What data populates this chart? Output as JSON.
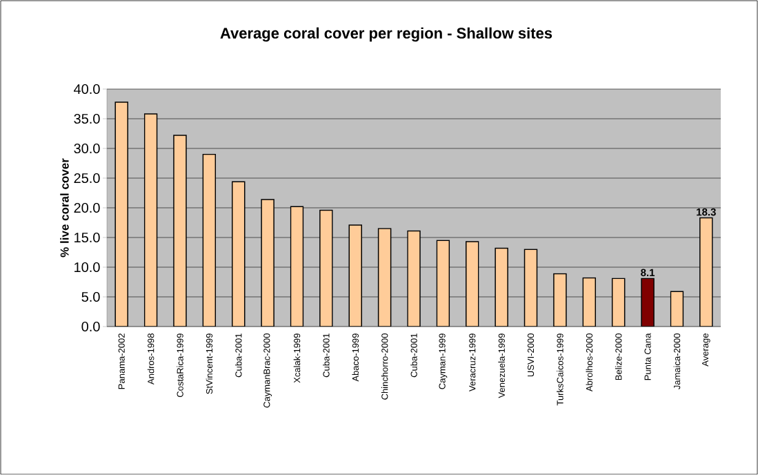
{
  "chart_data": {
    "type": "bar",
    "title": "Average coral cover per region - Shallow sites",
    "ylabel": "% live coral cover",
    "categories": [
      "Panama-2002",
      "Andros-1998",
      "CostaRica-1999",
      "StVincent-1999",
      "Cuba-2001",
      "CaymanBrac-2000",
      "Xcalak-1999",
      "Cuba-2001",
      "Abaco-1999",
      "Chinchorro-2000",
      "Cuba-2001",
      "Cayman-1999",
      "Veracruz-1999",
      "Venezuela-1999",
      "USVI-2000",
      "TurksCaicos-1999",
      "Abrolhos-2000",
      "Belize-2000",
      "Punta Cana",
      "Jamaica-2000",
      "Average"
    ],
    "values": [
      37.8,
      35.8,
      32.2,
      29.0,
      24.4,
      21.4,
      20.2,
      19.6,
      17.1,
      16.5,
      16.1,
      14.5,
      14.3,
      13.2,
      13.0,
      8.9,
      8.2,
      8.1,
      8.1,
      5.9,
      18.3
    ],
    "colors": [
      "#ffcc99",
      "#ffcc99",
      "#ffcc99",
      "#ffcc99",
      "#ffcc99",
      "#ffcc99",
      "#ffcc99",
      "#ffcc99",
      "#ffcc99",
      "#ffcc99",
      "#ffcc99",
      "#ffcc99",
      "#ffcc99",
      "#ffcc99",
      "#ffcc99",
      "#ffcc99",
      "#ffcc99",
      "#ffcc99",
      "#800000",
      "#ffcc99",
      "#ffcc99"
    ],
    "value_labels": [
      null,
      null,
      null,
      null,
      null,
      null,
      null,
      null,
      null,
      null,
      null,
      null,
      null,
      null,
      null,
      null,
      null,
      null,
      "8.1",
      null,
      "18.3"
    ],
    "ylim": [
      0,
      40
    ],
    "yticks": [
      {
        "value": 0,
        "label": "0.0"
      },
      {
        "value": 5,
        "label": "5.0"
      },
      {
        "value": 10,
        "label": "10.0"
      },
      {
        "value": 15,
        "label": "15.0"
      },
      {
        "value": 20,
        "label": "20.0"
      },
      {
        "value": 25,
        "label": "25.0"
      },
      {
        "value": 30,
        "label": "30.0"
      },
      {
        "value": 35,
        "label": "35.0"
      },
      {
        "value": 40,
        "label": "40.0"
      }
    ],
    "grid": "y"
  }
}
